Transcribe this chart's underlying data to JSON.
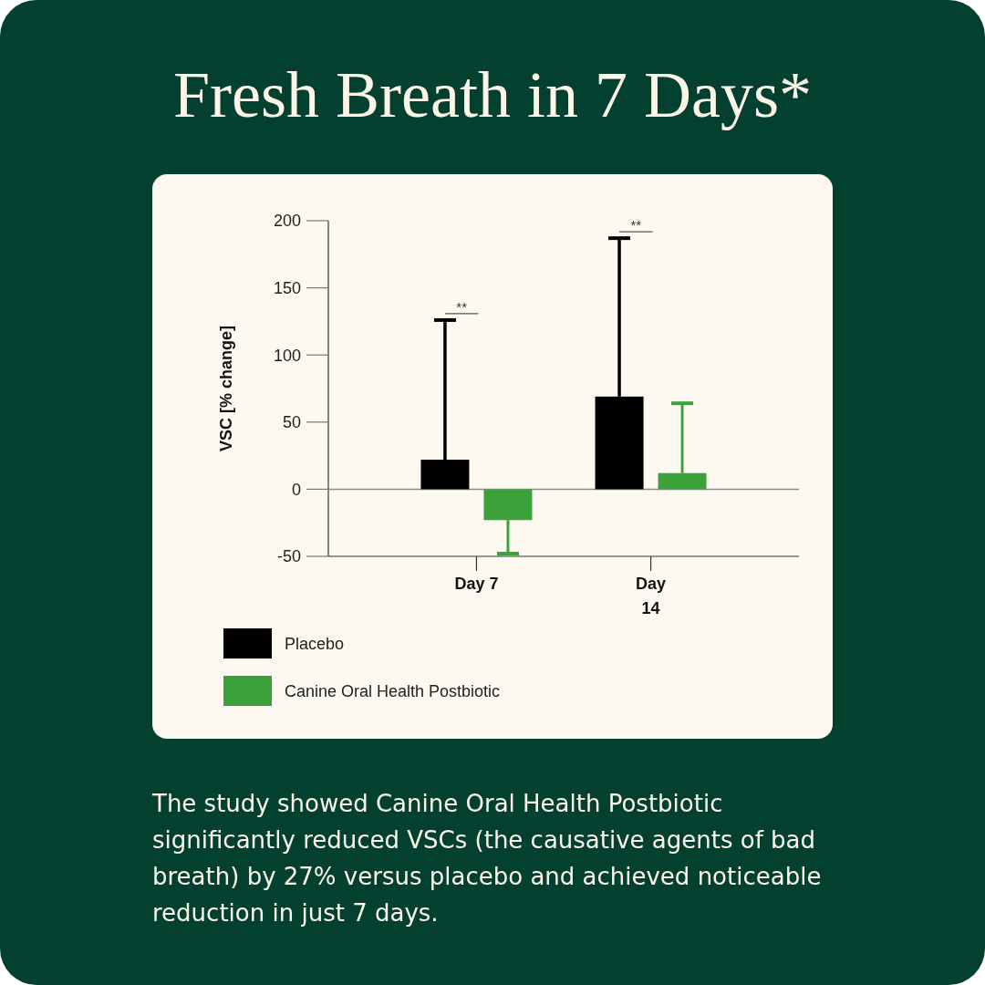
{
  "chart_data": {
    "type": "bar",
    "title": "Fresh Breath in 7 Days*",
    "ylabel": "VSC [% change]",
    "categories": [
      "Day 7",
      "Day 14"
    ],
    "series": [
      {
        "name": "Placebo",
        "color": "#000000",
        "values": [
          22,
          69
        ],
        "errors": [
          [
            22,
            126
          ],
          [
            69,
            187
          ]
        ]
      },
      {
        "name": "Canine Oral Health Postbiotic",
        "color": "#3ba23b",
        "values": [
          -23,
          12
        ],
        "errors": [
          [
            -48,
            -23
          ],
          [
            12,
            64
          ]
        ]
      }
    ],
    "ylim": [
      -50,
      200
    ],
    "yticks": [
      -50,
      0,
      50,
      100,
      150,
      200
    ],
    "grid": false,
    "legend": "bottom left",
    "ref_lines": [
      {
        "axis": "y",
        "value": 0,
        "color": "#8c8c8c"
      }
    ],
    "annotations": [
      "**",
      "**",
      "The study showed Canine Oral Health Postbiotic significantly reduced VSCs (the causative agents of bad breath) by 27% versus placebo and achieved noticeable reduction in just 7 days."
    ]
  }
}
